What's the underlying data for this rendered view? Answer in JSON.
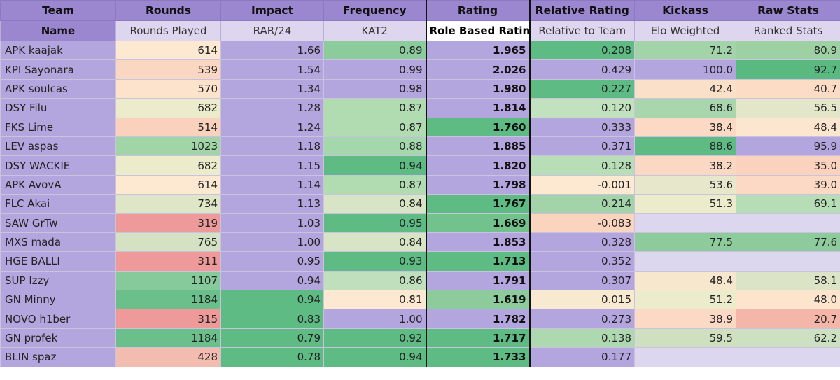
{
  "header": {
    "groups": [
      "Team",
      "Rounds",
      "Impact",
      "Frequency",
      "Rating",
      "Relative Rating",
      "Kickass",
      "Raw Stats"
    ],
    "subs": [
      "Name",
      "Rounds Played",
      "RAR/24",
      "KAT2",
      "Role Based Rating",
      "Relative to Team",
      "Elo Weighted",
      "Ranked Stats"
    ]
  },
  "rows": [
    {
      "name": "APK kaajak",
      "rounds": "614",
      "rar": "1.66",
      "kat": "0.89",
      "rbr": "1.965",
      "rel": "0.208",
      "elo": "71.2",
      "ranked": "80.9",
      "c": [
        "#fde9d2",
        "#b3a5dd",
        "#8bcb9c",
        "#b3a5dd",
        "#5dbb83",
        "#a3d4a9",
        "#9dd1a3"
      ]
    },
    {
      "name": "KPI Sayonara",
      "rounds": "539",
      "rar": "1.54",
      "kat": "0.99",
      "rbr": "2.026",
      "rel": "0.429",
      "elo": "100.0",
      "ranked": "92.7",
      "c": [
        "#fad7c2",
        "#b3a5dd",
        "#b3a5dd",
        "#b3a5dd",
        "#b3a5dd",
        "#b3a5dd",
        "#59b981"
      ]
    },
    {
      "name": "APK soulcas",
      "rounds": "570",
      "rar": "1.34",
      "kat": "0.98",
      "rbr": "1.980",
      "rel": "0.227",
      "elo": "42.4",
      "ranked": "40.7",
      "c": [
        "#fde3cc",
        "#b3a5dd",
        "#b3a5dd",
        "#b3a5dd",
        "#5dbb83",
        "#fbe0c9",
        "#fcdcc5"
      ]
    },
    {
      "name": "DSY Filu",
      "rounds": "682",
      "rar": "1.28",
      "kat": "0.87",
      "rbr": "1.814",
      "rel": "0.120",
      "elo": "68.6",
      "ranked": "56.5",
      "c": [
        "#ecebcc",
        "#b3a5dd",
        "#b1dcb2",
        "#b3a5dd",
        "#c2e1bf",
        "#a9d6ac",
        "#e4e6c9"
      ]
    },
    {
      "name": "FKS Lime",
      "rounds": "514",
      "rar": "1.24",
      "kat": "0.87",
      "rbr": "1.760",
      "rel": "0.333",
      "elo": "38.4",
      "ranked": "48.4",
      "c": [
        "#f9d1bd",
        "#b3a5dd",
        "#b1dcb2",
        "#5dbb83",
        "#b3a5dd",
        "#fbd9c4",
        "#fde6cf"
      ]
    },
    {
      "name": "LEV aspas",
      "rounds": "1023",
      "rar": "1.18",
      "kat": "0.88",
      "rbr": "1.885",
      "rel": "0.371",
      "elo": "88.6",
      "ranked": "95.9",
      "c": [
        "#a1d4a6",
        "#b3a5dd",
        "#a4d7ab",
        "#b3a5dd",
        "#b3a5dd",
        "#5dbb83",
        "#b3a5dd"
      ]
    },
    {
      "name": "DSY WACKIE",
      "rounds": "682",
      "rar": "1.15",
      "kat": "0.94",
      "rbr": "1.820",
      "rel": "0.128",
      "elo": "38.2",
      "ranked": "35.0",
      "c": [
        "#ecebcc",
        "#b3a5dd",
        "#5dbb83",
        "#b3a5dd",
        "#b8deb8",
        "#fbd8c3",
        "#fad2bd"
      ]
    },
    {
      "name": "APK AvovA",
      "rounds": "614",
      "rar": "1.14",
      "kat": "0.87",
      "rbr": "1.798",
      "rel": "-0.001",
      "elo": "53.6",
      "ranked": "39.0",
      "c": [
        "#fde9d2",
        "#b3a5dd",
        "#b1dcb2",
        "#b3a5dd",
        "#fde8d1",
        "#e7e8cb",
        "#fbd9c4"
      ]
    },
    {
      "name": "FLC Akai",
      "rounds": "734",
      "rar": "1.13",
      "kat": "0.84",
      "rbr": "1.767",
      "rel": "0.214",
      "elo": "51.3",
      "ranked": "69.1",
      "c": [
        "#dfe6c7",
        "#b3a5dd",
        "#d8e4c6",
        "#5dbb83",
        "#a3d4a9",
        "#ecebcc",
        "#b7ddb7"
      ]
    },
    {
      "name": "SAW GrTw",
      "rounds": "319",
      "rar": "1.03",
      "kat": "0.95",
      "rbr": "1.669",
      "rel": "-0.083",
      "elo": "",
      "ranked": "",
      "c": [
        "#ee9a9a",
        "#b3a5dd",
        "#5dbb83",
        "#72c28d",
        "#fad4bf",
        "#dcd6ee",
        "#dcd6ee"
      ]
    },
    {
      "name": "MXS mada",
      "rounds": "765",
      "rar": "1.00",
      "kat": "0.84",
      "rbr": "1.853",
      "rel": "0.328",
      "elo": "77.5",
      "ranked": "77.6",
      "c": [
        "#d4e2c3",
        "#b3a5dd",
        "#d8e4c6",
        "#b3a5dd",
        "#b3a5dd",
        "#8dcb9d",
        "#8dcb9d"
      ]
    },
    {
      "name": "HGE BALLI",
      "rounds": "311",
      "rar": "0.95",
      "kat": "0.93",
      "rbr": "1.713",
      "rel": "0.352",
      "elo": "",
      "ranked": "",
      "c": [
        "#ee9a9a",
        "#b3a5dd",
        "#5dbb83",
        "#5dbb83",
        "#b3a5dd",
        "#dcd6ee",
        "#dcd6ee"
      ]
    },
    {
      "name": "SUP Izzy",
      "rounds": "1107",
      "rar": "0.94",
      "kat": "0.86",
      "rbr": "1.791",
      "rel": "0.307",
      "elo": "48.4",
      "ranked": "58.1",
      "c": [
        "#86c99a",
        "#b3a5dd",
        "#c0e0bd",
        "#b3a5dd",
        "#b3a5dd",
        "#f6e7cd",
        "#dbe4c6"
      ]
    },
    {
      "name": "GN Minny",
      "rounds": "1184",
      "rar": "0.94",
      "kat": "0.81",
      "rbr": "1.619",
      "rel": "0.015",
      "elo": "51.2",
      "ranked": "48.0",
      "c": [
        "#6abf8b",
        "#5dbb83",
        "#fde9d2",
        "#8dcb9d",
        "#f8ead0",
        "#ecebcc",
        "#fde4cd"
      ]
    },
    {
      "name": "NOVO h1ber",
      "rounds": "315",
      "rar": "0.83",
      "kat": "1.00",
      "rbr": "1.782",
      "rel": "0.273",
      "elo": "38.9",
      "ranked": "20.7",
      "c": [
        "#ee9a9a",
        "#5dbb83",
        "#b3a5dd",
        "#b3a5dd",
        "#b3a5dd",
        "#fbd9c4",
        "#f3b6a8"
      ]
    },
    {
      "name": "GN profek",
      "rounds": "1184",
      "rar": "0.79",
      "kat": "0.92",
      "rbr": "1.717",
      "rel": "0.138",
      "elo": "59.5",
      "ranked": "62.2",
      "c": [
        "#6abf8b",
        "#5dbb83",
        "#5dbb83",
        "#5dbb83",
        "#aed9b0",
        "#cfe0c1",
        "#cde0c1"
      ]
    },
    {
      "name": "BLIN spaz",
      "rounds": "428",
      "rar": "0.78",
      "kat": "0.94",
      "rbr": "1.733",
      "rel": "0.177",
      "elo": "",
      "ranked": "",
      "c": [
        "#f3bcb0",
        "#5dbb83",
        "#5dbb83",
        "#5dbb83",
        "#b3a5dd",
        "#dcd6ee",
        "#dcd6ee"
      ]
    }
  ]
}
